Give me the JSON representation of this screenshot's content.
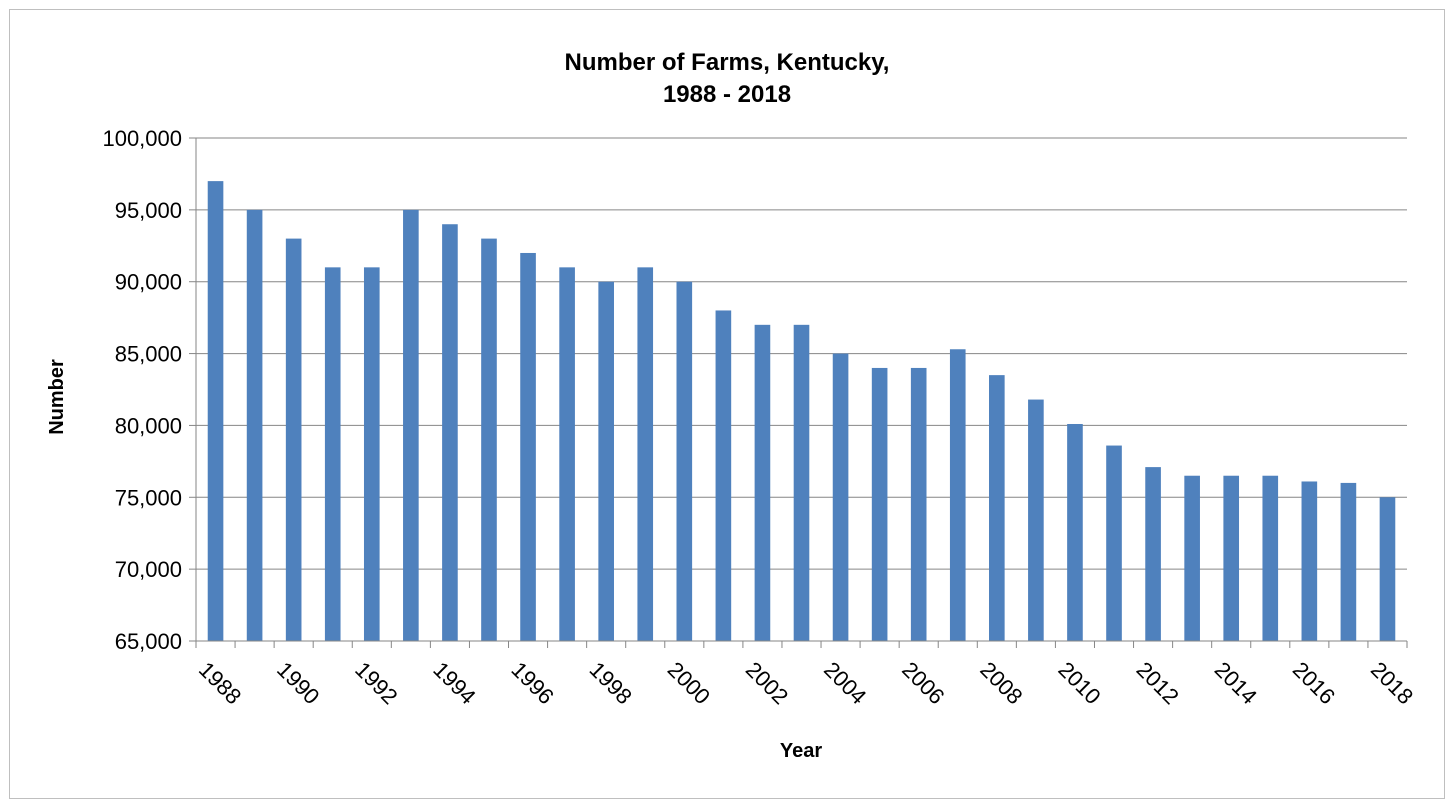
{
  "chart_data": {
    "type": "bar",
    "title": "Number of Farms, Kentucky,",
    "subtitle": "1988 - 2018",
    "xlabel": "Year",
    "ylabel": "Number",
    "ylim": [
      65000,
      100000
    ],
    "ytick_step": 5000,
    "yticks": [
      "65,000",
      "70,000",
      "75,000",
      "80,000",
      "85,000",
      "90,000",
      "95,000",
      "100,000"
    ],
    "grid": true,
    "legend": "none",
    "bar_color": "#4f81bd",
    "categories": [
      "1988",
      "1989",
      "1990",
      "1991",
      "1992",
      "1993",
      "1994",
      "1995",
      "1996",
      "1997",
      "1998",
      "1999",
      "2000",
      "2001",
      "2002",
      "2003",
      "2004",
      "2005",
      "2006",
      "2007",
      "2008",
      "2009",
      "2010",
      "2011",
      "2012",
      "2013",
      "2014",
      "2015",
      "2016",
      "2017",
      "2018"
    ],
    "xtick_labels": [
      "1988",
      "1990",
      "1992",
      "1994",
      "1996",
      "1998",
      "2000",
      "2002",
      "2004",
      "2006",
      "2008",
      "2010",
      "2012",
      "2014",
      "2016",
      "2018"
    ],
    "values": [
      97000,
      95000,
      93000,
      91000,
      91000,
      95000,
      94000,
      93000,
      92000,
      91000,
      90000,
      91000,
      90000,
      88000,
      87000,
      87000,
      85000,
      84000,
      84000,
      85300,
      83500,
      81800,
      80100,
      78600,
      77100,
      76500,
      76500,
      76500,
      76100,
      76000,
      75000
    ]
  }
}
